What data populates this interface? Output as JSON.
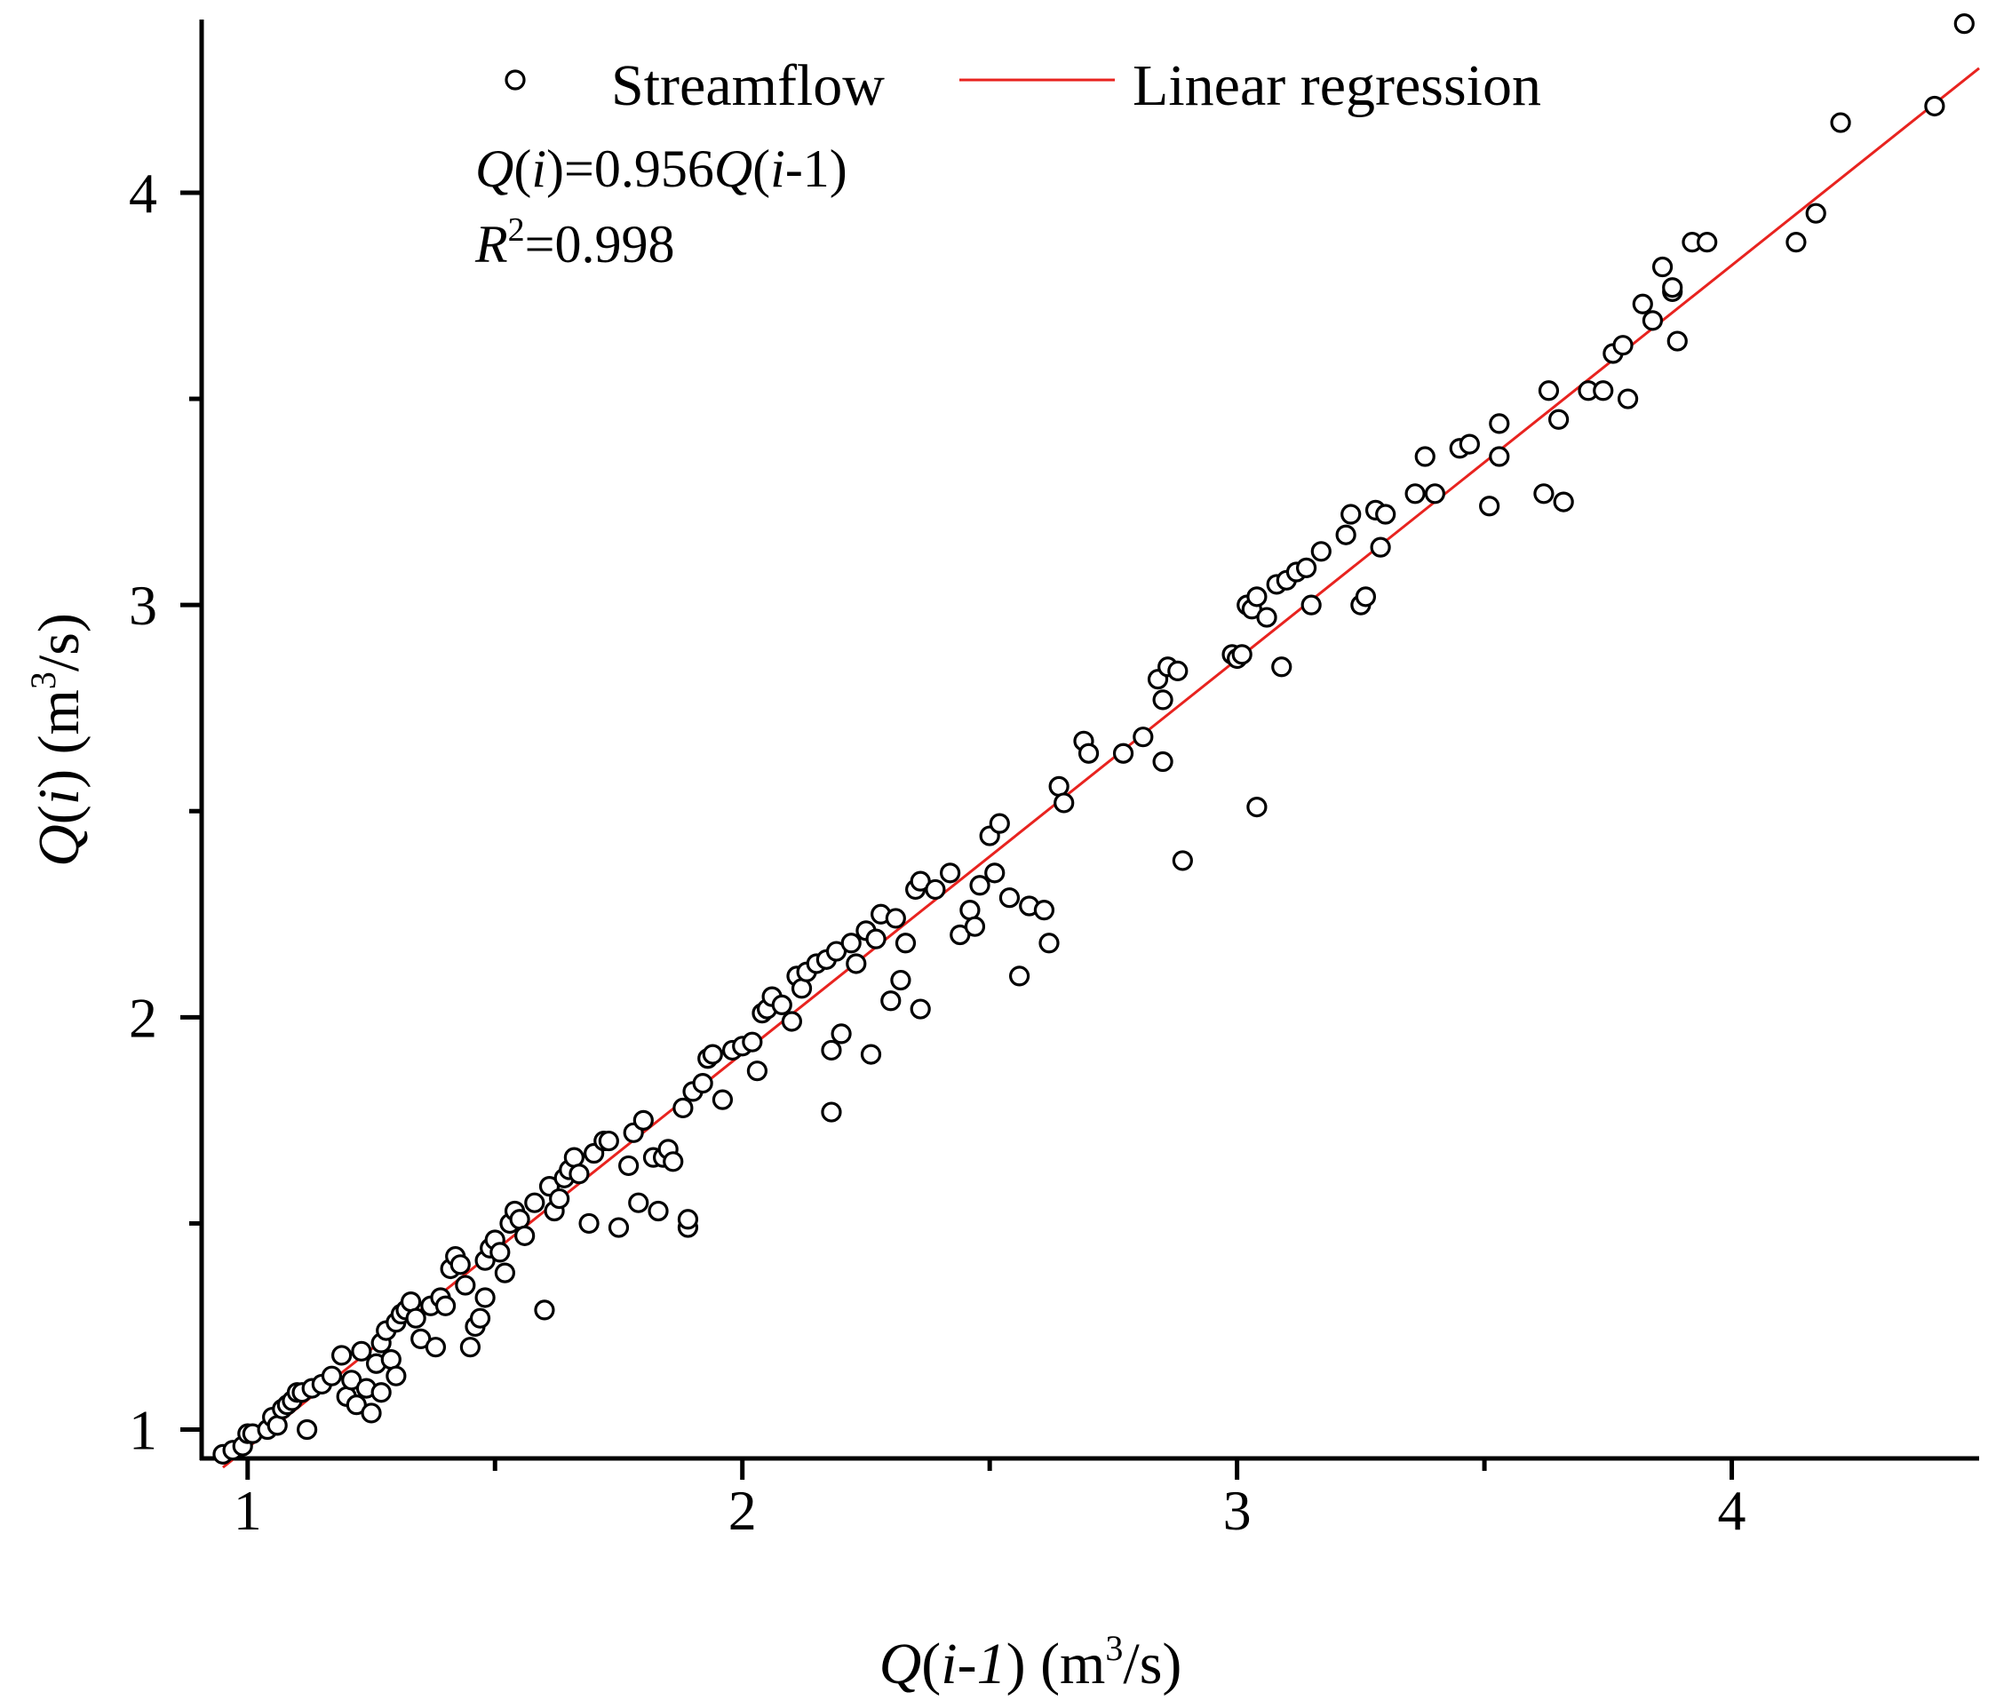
{
  "chart_data": {
    "type": "scatter",
    "title": "",
    "xlabel": {
      "prefix": "Q",
      "open": "(",
      "var": "i-1",
      "close": ")",
      "unit_open": " (m",
      "unit_sup": "3",
      "unit_close": "/s)"
    },
    "ylabel": {
      "prefix": "Q",
      "open": "(",
      "var": "i",
      "close": ")",
      "unit_open": " (m",
      "unit_sup": "3",
      "unit_close": "/s)"
    },
    "xlim": [
      0.907,
      4.5
    ],
    "ylim": [
      0.93,
      4.42
    ],
    "x_ticks": [
      1,
      2,
      3,
      4
    ],
    "x_minor_ticks": [
      1.5,
      2.5,
      3.5
    ],
    "y_ticks": [
      1,
      2,
      3,
      4
    ],
    "y_minor_ticks": [
      1.5,
      2.5,
      3.5
    ],
    "grid": false,
    "legend": {
      "position": "top-center",
      "entries": [
        {
          "label": "Streamflow",
          "marker": "circle"
        },
        {
          "label": "Linear regression",
          "marker": "line",
          "color": "#e8231f"
        }
      ]
    },
    "equation": {
      "lhs_q": "Q",
      "lhs_open": "(",
      "lhs_i": "i",
      "lhs_eq": ")=0.956",
      "rhs_q": "Q",
      "rhs_open": "(",
      "rhs_i": "i",
      "rhs_rest": "-1)"
    },
    "r_squared": {
      "r": "R",
      "sup": "2",
      "value": "=0.998"
    },
    "regression": {
      "slope": 0.956,
      "intercept": 0,
      "x_range": [
        0.95,
        4.5
      ],
      "color": "#e8231f"
    },
    "series": [
      {
        "name": "Streamflow",
        "points": [
          [
            0.95,
            0.94
          ],
          [
            0.97,
            0.95
          ],
          [
            0.99,
            0.96
          ],
          [
            1.0,
            0.99
          ],
          [
            1.01,
            0.99
          ],
          [
            1.04,
            1.0
          ],
          [
            1.05,
            1.03
          ],
          [
            1.06,
            1.01
          ],
          [
            1.07,
            1.05
          ],
          [
            1.08,
            1.06
          ],
          [
            1.09,
            1.07
          ],
          [
            1.1,
            1.09
          ],
          [
            1.11,
            1.09
          ],
          [
            1.12,
            1.0
          ],
          [
            1.13,
            1.1
          ],
          [
            1.15,
            1.11
          ],
          [
            1.17,
            1.13
          ],
          [
            1.19,
            1.18
          ],
          [
            1.2,
            1.08
          ],
          [
            1.21,
            1.12
          ],
          [
            1.22,
            1.06
          ],
          [
            1.23,
            1.19
          ],
          [
            1.24,
            1.1
          ],
          [
            1.25,
            1.04
          ],
          [
            1.26,
            1.16
          ],
          [
            1.27,
            1.21
          ],
          [
            1.27,
            1.09
          ],
          [
            1.28,
            1.24
          ],
          [
            1.29,
            1.17
          ],
          [
            1.3,
            1.26
          ],
          [
            1.3,
            1.13
          ],
          [
            1.31,
            1.28
          ],
          [
            1.32,
            1.29
          ],
          [
            1.33,
            1.31
          ],
          [
            1.34,
            1.27
          ],
          [
            1.35,
            1.22
          ],
          [
            1.37,
            1.3
          ],
          [
            1.38,
            1.2
          ],
          [
            1.39,
            1.32
          ],
          [
            1.4,
            1.3
          ],
          [
            1.41,
            1.39
          ],
          [
            1.42,
            1.42
          ],
          [
            1.43,
            1.4
          ],
          [
            1.44,
            1.35
          ],
          [
            1.45,
            1.2
          ],
          [
            1.46,
            1.25
          ],
          [
            1.47,
            1.27
          ],
          [
            1.48,
            1.32
          ],
          [
            1.48,
            1.41
          ],
          [
            1.49,
            1.44
          ],
          [
            1.5,
            1.46
          ],
          [
            1.51,
            1.43
          ],
          [
            1.52,
            1.38
          ],
          [
            1.53,
            1.5
          ],
          [
            1.54,
            1.53
          ],
          [
            1.55,
            1.51
          ],
          [
            1.56,
            1.47
          ],
          [
            1.58,
            1.55
          ],
          [
            1.6,
            1.29
          ],
          [
            1.61,
            1.59
          ],
          [
            1.62,
            1.53
          ],
          [
            1.63,
            1.56
          ],
          [
            1.64,
            1.61
          ],
          [
            1.65,
            1.63
          ],
          [
            1.66,
            1.66
          ],
          [
            1.67,
            1.62
          ],
          [
            1.69,
            1.5
          ],
          [
            1.7,
            1.67
          ],
          [
            1.72,
            1.7
          ],
          [
            1.73,
            1.7
          ],
          [
            1.75,
            1.49
          ],
          [
            1.77,
            1.64
          ],
          [
            1.78,
            1.72
          ],
          [
            1.79,
            1.55
          ],
          [
            1.8,
            1.75
          ],
          [
            1.82,
            1.66
          ],
          [
            1.83,
            1.53
          ],
          [
            1.84,
            1.66
          ],
          [
            1.85,
            1.68
          ],
          [
            1.86,
            1.65
          ],
          [
            1.88,
            1.78
          ],
          [
            1.89,
            1.49
          ],
          [
            1.89,
            1.51
          ],
          [
            1.9,
            1.82
          ],
          [
            1.92,
            1.84
          ],
          [
            1.93,
            1.9
          ],
          [
            1.94,
            1.91
          ],
          [
            1.96,
            1.8
          ],
          [
            1.98,
            1.92
          ],
          [
            2.0,
            1.93
          ],
          [
            2.02,
            1.94
          ],
          [
            2.03,
            1.87
          ],
          [
            2.04,
            2.01
          ],
          [
            2.05,
            2.02
          ],
          [
            2.06,
            2.05
          ],
          [
            2.08,
            2.03
          ],
          [
            2.1,
            1.99
          ],
          [
            2.11,
            2.1
          ],
          [
            2.12,
            2.07
          ],
          [
            2.13,
            2.11
          ],
          [
            2.15,
            2.13
          ],
          [
            2.17,
            2.14
          ],
          [
            2.18,
            1.92
          ],
          [
            2.18,
            1.77
          ],
          [
            2.19,
            2.16
          ],
          [
            2.2,
            1.96
          ],
          [
            2.22,
            2.18
          ],
          [
            2.23,
            2.13
          ],
          [
            2.25,
            2.21
          ],
          [
            2.26,
            1.91
          ],
          [
            2.27,
            2.19
          ],
          [
            2.28,
            2.25
          ],
          [
            2.3,
            2.04
          ],
          [
            2.31,
            2.24
          ],
          [
            2.32,
            2.09
          ],
          [
            2.33,
            2.18
          ],
          [
            2.35,
            2.31
          ],
          [
            2.36,
            2.33
          ],
          [
            2.36,
            2.02
          ],
          [
            2.39,
            2.31
          ],
          [
            2.42,
            2.35
          ],
          [
            2.44,
            2.2
          ],
          [
            2.46,
            2.26
          ],
          [
            2.47,
            2.22
          ],
          [
            2.48,
            2.32
          ],
          [
            2.5,
            2.44
          ],
          [
            2.51,
            2.35
          ],
          [
            2.52,
            2.47
          ],
          [
            2.54,
            2.29
          ],
          [
            2.56,
            2.1
          ],
          [
            2.58,
            2.27
          ],
          [
            2.61,
            2.26
          ],
          [
            2.62,
            2.18
          ],
          [
            2.64,
            2.56
          ],
          [
            2.65,
            2.52
          ],
          [
            2.69,
            2.67
          ],
          [
            2.7,
            2.64
          ],
          [
            2.77,
            2.64
          ],
          [
            2.81,
            2.68
          ],
          [
            2.84,
            2.82
          ],
          [
            2.85,
            2.77
          ],
          [
            2.85,
            2.62
          ],
          [
            2.86,
            2.85
          ],
          [
            2.88,
            2.84
          ],
          [
            2.89,
            2.38
          ],
          [
            2.99,
            2.88
          ],
          [
            3.0,
            2.87
          ],
          [
            3.01,
            2.88
          ],
          [
            3.02,
            3.0
          ],
          [
            3.03,
            2.99
          ],
          [
            3.04,
            3.02
          ],
          [
            3.04,
            2.51
          ],
          [
            3.06,
            2.97
          ],
          [
            3.08,
            3.05
          ],
          [
            3.09,
            2.85
          ],
          [
            3.1,
            3.06
          ],
          [
            3.12,
            3.08
          ],
          [
            3.14,
            3.09
          ],
          [
            3.15,
            3.0
          ],
          [
            3.17,
            3.13
          ],
          [
            3.22,
            3.17
          ],
          [
            3.23,
            3.22
          ],
          [
            3.25,
            3.0
          ],
          [
            3.26,
            3.02
          ],
          [
            3.28,
            3.23
          ],
          [
            3.29,
            3.14
          ],
          [
            3.3,
            3.22
          ],
          [
            3.36,
            3.27
          ],
          [
            3.38,
            3.36
          ],
          [
            3.4,
            3.27
          ],
          [
            3.45,
            3.38
          ],
          [
            3.47,
            3.39
          ],
          [
            3.51,
            3.24
          ],
          [
            3.53,
            3.36
          ],
          [
            3.53,
            3.44
          ],
          [
            3.62,
            3.27
          ],
          [
            3.63,
            3.52
          ],
          [
            3.65,
            3.45
          ],
          [
            3.66,
            3.25
          ],
          [
            3.71,
            3.52
          ],
          [
            3.74,
            3.52
          ],
          [
            3.76,
            3.61
          ],
          [
            3.78,
            3.63
          ],
          [
            3.79,
            3.5
          ],
          [
            3.82,
            3.73
          ],
          [
            3.84,
            3.69
          ],
          [
            3.86,
            3.82
          ],
          [
            3.88,
            3.76
          ],
          [
            3.88,
            3.77
          ],
          [
            3.89,
            3.64
          ],
          [
            3.92,
            3.88
          ],
          [
            3.95,
            3.88
          ],
          [
            4.13,
            3.88
          ],
          [
            4.17,
            3.95
          ],
          [
            4.22,
            4.17
          ],
          [
            4.41,
            4.21
          ],
          [
            4.47,
            4.41
          ]
        ]
      }
    ]
  }
}
